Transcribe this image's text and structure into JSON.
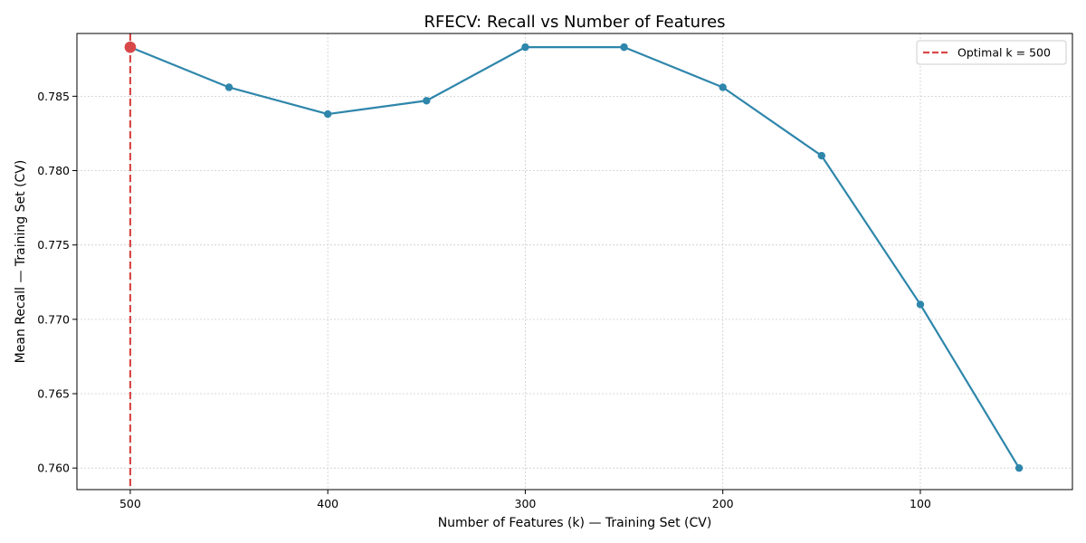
{
  "chart_data": {
    "type": "line",
    "title": "RFECV: Recall vs Number of Features",
    "xlabel": "Number of Features (k) — Training Set (CV)",
    "ylabel": "Mean Recall — Training Set (CV)",
    "x_inverted": true,
    "xlim": [
      527,
      23
    ],
    "ylim": [
      0.75855,
      0.78922
    ],
    "xticks": [
      500,
      400,
      300,
      200,
      100
    ],
    "yticks": [
      0.76,
      0.765,
      0.77,
      0.775,
      0.78,
      0.785
    ],
    "ytick_labels": [
      "0.760",
      "0.765",
      "0.770",
      "0.775",
      "0.780",
      "0.785"
    ],
    "grid": true,
    "legend_position": "top-right",
    "series": [
      {
        "color": "#2e86ab",
        "x": [
          500,
          450,
          400,
          350,
          300,
          250,
          200,
          150,
          100,
          50
        ],
        "y": [
          0.7883,
          0.7856,
          0.7838,
          0.7847,
          0.7883,
          0.7883,
          0.7856,
          0.781,
          0.771,
          0.76
        ]
      }
    ],
    "optimal": {
      "label": "Optimal k = 500",
      "k": 500,
      "value": 0.7883,
      "color": "#d94848"
    }
  }
}
